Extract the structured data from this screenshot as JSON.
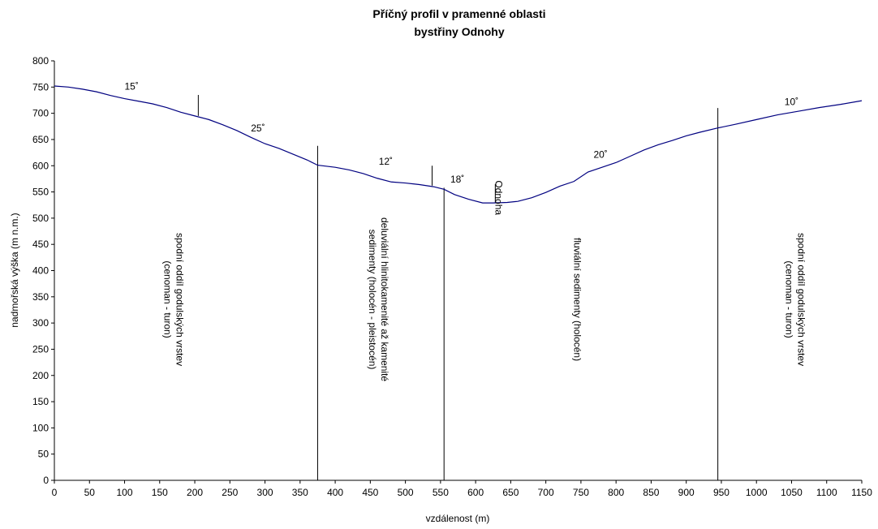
{
  "chart_data": {
    "type": "line",
    "title_lines": [
      "Příčný profil v pramenné oblasti",
      "bystřiny Odnohy"
    ],
    "xlabel": "vzdálenost (m)",
    "ylabel": "nadmořská výška (m n.m.)",
    "xlim": [
      0,
      1150
    ],
    "ylim": [
      0,
      800
    ],
    "x_ticks": [
      0,
      50,
      100,
      150,
      200,
      250,
      300,
      350,
      400,
      450,
      500,
      550,
      600,
      650,
      700,
      750,
      800,
      850,
      900,
      950,
      1000,
      1050,
      1100,
      1150
    ],
    "y_ticks": [
      0,
      50,
      100,
      150,
      200,
      250,
      300,
      350,
      400,
      450,
      500,
      550,
      600,
      650,
      700,
      750,
      800
    ],
    "grid": false,
    "line_color": "#000080",
    "series": [
      {
        "x": [
          0,
          20,
          40,
          60,
          80,
          100,
          120,
          140,
          160,
          180,
          200,
          220,
          240,
          260,
          280,
          300,
          320,
          340,
          360,
          375,
          400,
          420,
          440,
          460,
          480,
          500,
          520,
          540,
          555,
          570,
          590,
          610,
          625,
          645,
          660,
          680,
          700,
          720,
          740,
          760,
          780,
          800,
          820,
          840,
          860,
          880,
          900,
          920,
          945,
          970,
          1000,
          1030,
          1060,
          1090,
          1120,
          1150
        ],
        "y": [
          752,
          750,
          746,
          741,
          734,
          728,
          723,
          718,
          711,
          702,
          695,
          688,
          678,
          667,
          654,
          642,
          633,
          622,
          611,
          601,
          597,
          592,
          585,
          576,
          569,
          567,
          564,
          560,
          555,
          545,
          536,
          529,
          529,
          530,
          532,
          539,
          549,
          561,
          570,
          588,
          597,
          606,
          618,
          630,
          640,
          648,
          657,
          664,
          672,
          679,
          688,
          697,
          704,
          711,
          717,
          724
        ]
      }
    ],
    "vlines": [
      {
        "x": 205,
        "y_from": 695,
        "y_to": 735
      },
      {
        "x": 375,
        "y_from": 0,
        "y_to": 638
      },
      {
        "x": 538,
        "y_from": 562,
        "y_to": 600
      },
      {
        "x": 555,
        "y_from": 0,
        "y_to": 558
      },
      {
        "x": 628,
        "y_from": 529,
        "y_to": 565
      },
      {
        "x": 945,
        "y_from": 0,
        "y_to": 710
      }
    ],
    "annotations": [
      {
        "text": "15˚",
        "x": 110,
        "y": 745
      },
      {
        "text": "25˚",
        "x": 290,
        "y": 665
      },
      {
        "text": "12˚",
        "x": 472,
        "y": 602
      },
      {
        "text": "18˚",
        "x": 574,
        "y": 568
      },
      {
        "text": "20˚",
        "x": 778,
        "y": 615
      },
      {
        "text": "10˚",
        "x": 1050,
        "y": 716
      },
      {
        "text": "Odnoha",
        "x": 628,
        "y": 572,
        "rotate": 90
      }
    ],
    "zone_labels": [
      {
        "lines": [
          "spodní oddíl godulských vrstev",
          "(cenoman - turon)"
        ],
        "x": 170,
        "y": 345
      },
      {
        "lines": [
          "deluviální hlinitokamenité až kamenité",
          "sedimenty (holocén - pleistocén)"
        ],
        "x": 462,
        "y": 345
      },
      {
        "lines": [
          "fluviální sedimenty (holocén)"
        ],
        "x": 745,
        "y": 345
      },
      {
        "lines": [
          "spodní oddíl godulských vrstev",
          "(cenoman - turon)"
        ],
        "x": 1055,
        "y": 345
      }
    ]
  }
}
